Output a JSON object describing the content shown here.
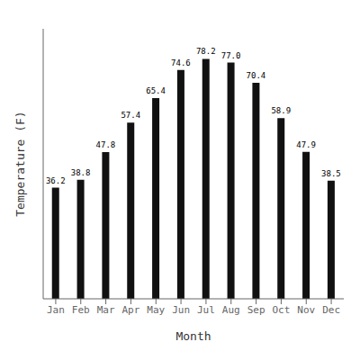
{
  "chart_data": {
    "type": "bar",
    "xlabel": "Month",
    "ylabel": "Temperature (F)",
    "categories": [
      "Jan",
      "Feb",
      "Mar",
      "Apr",
      "May",
      "Jun",
      "Jul",
      "Aug",
      "Sep",
      "Oct",
      "Nov",
      "Dec"
    ],
    "values": [
      36.2,
      38.8,
      47.8,
      57.4,
      65.4,
      74.6,
      78.2,
      77.0,
      70.4,
      58.9,
      47.9,
      38.5
    ],
    "value_labels": [
      "36.2",
      "38.8",
      "47.8",
      "57.4",
      "65.4",
      "74.6",
      "78.2",
      "77.0",
      "70.4",
      "58.9",
      "47.9",
      "38.5"
    ],
    "color": "#111111",
    "ylim": [
      0,
      88
    ],
    "grid": false,
    "data_labels": true,
    "tick_labels": "x"
  }
}
